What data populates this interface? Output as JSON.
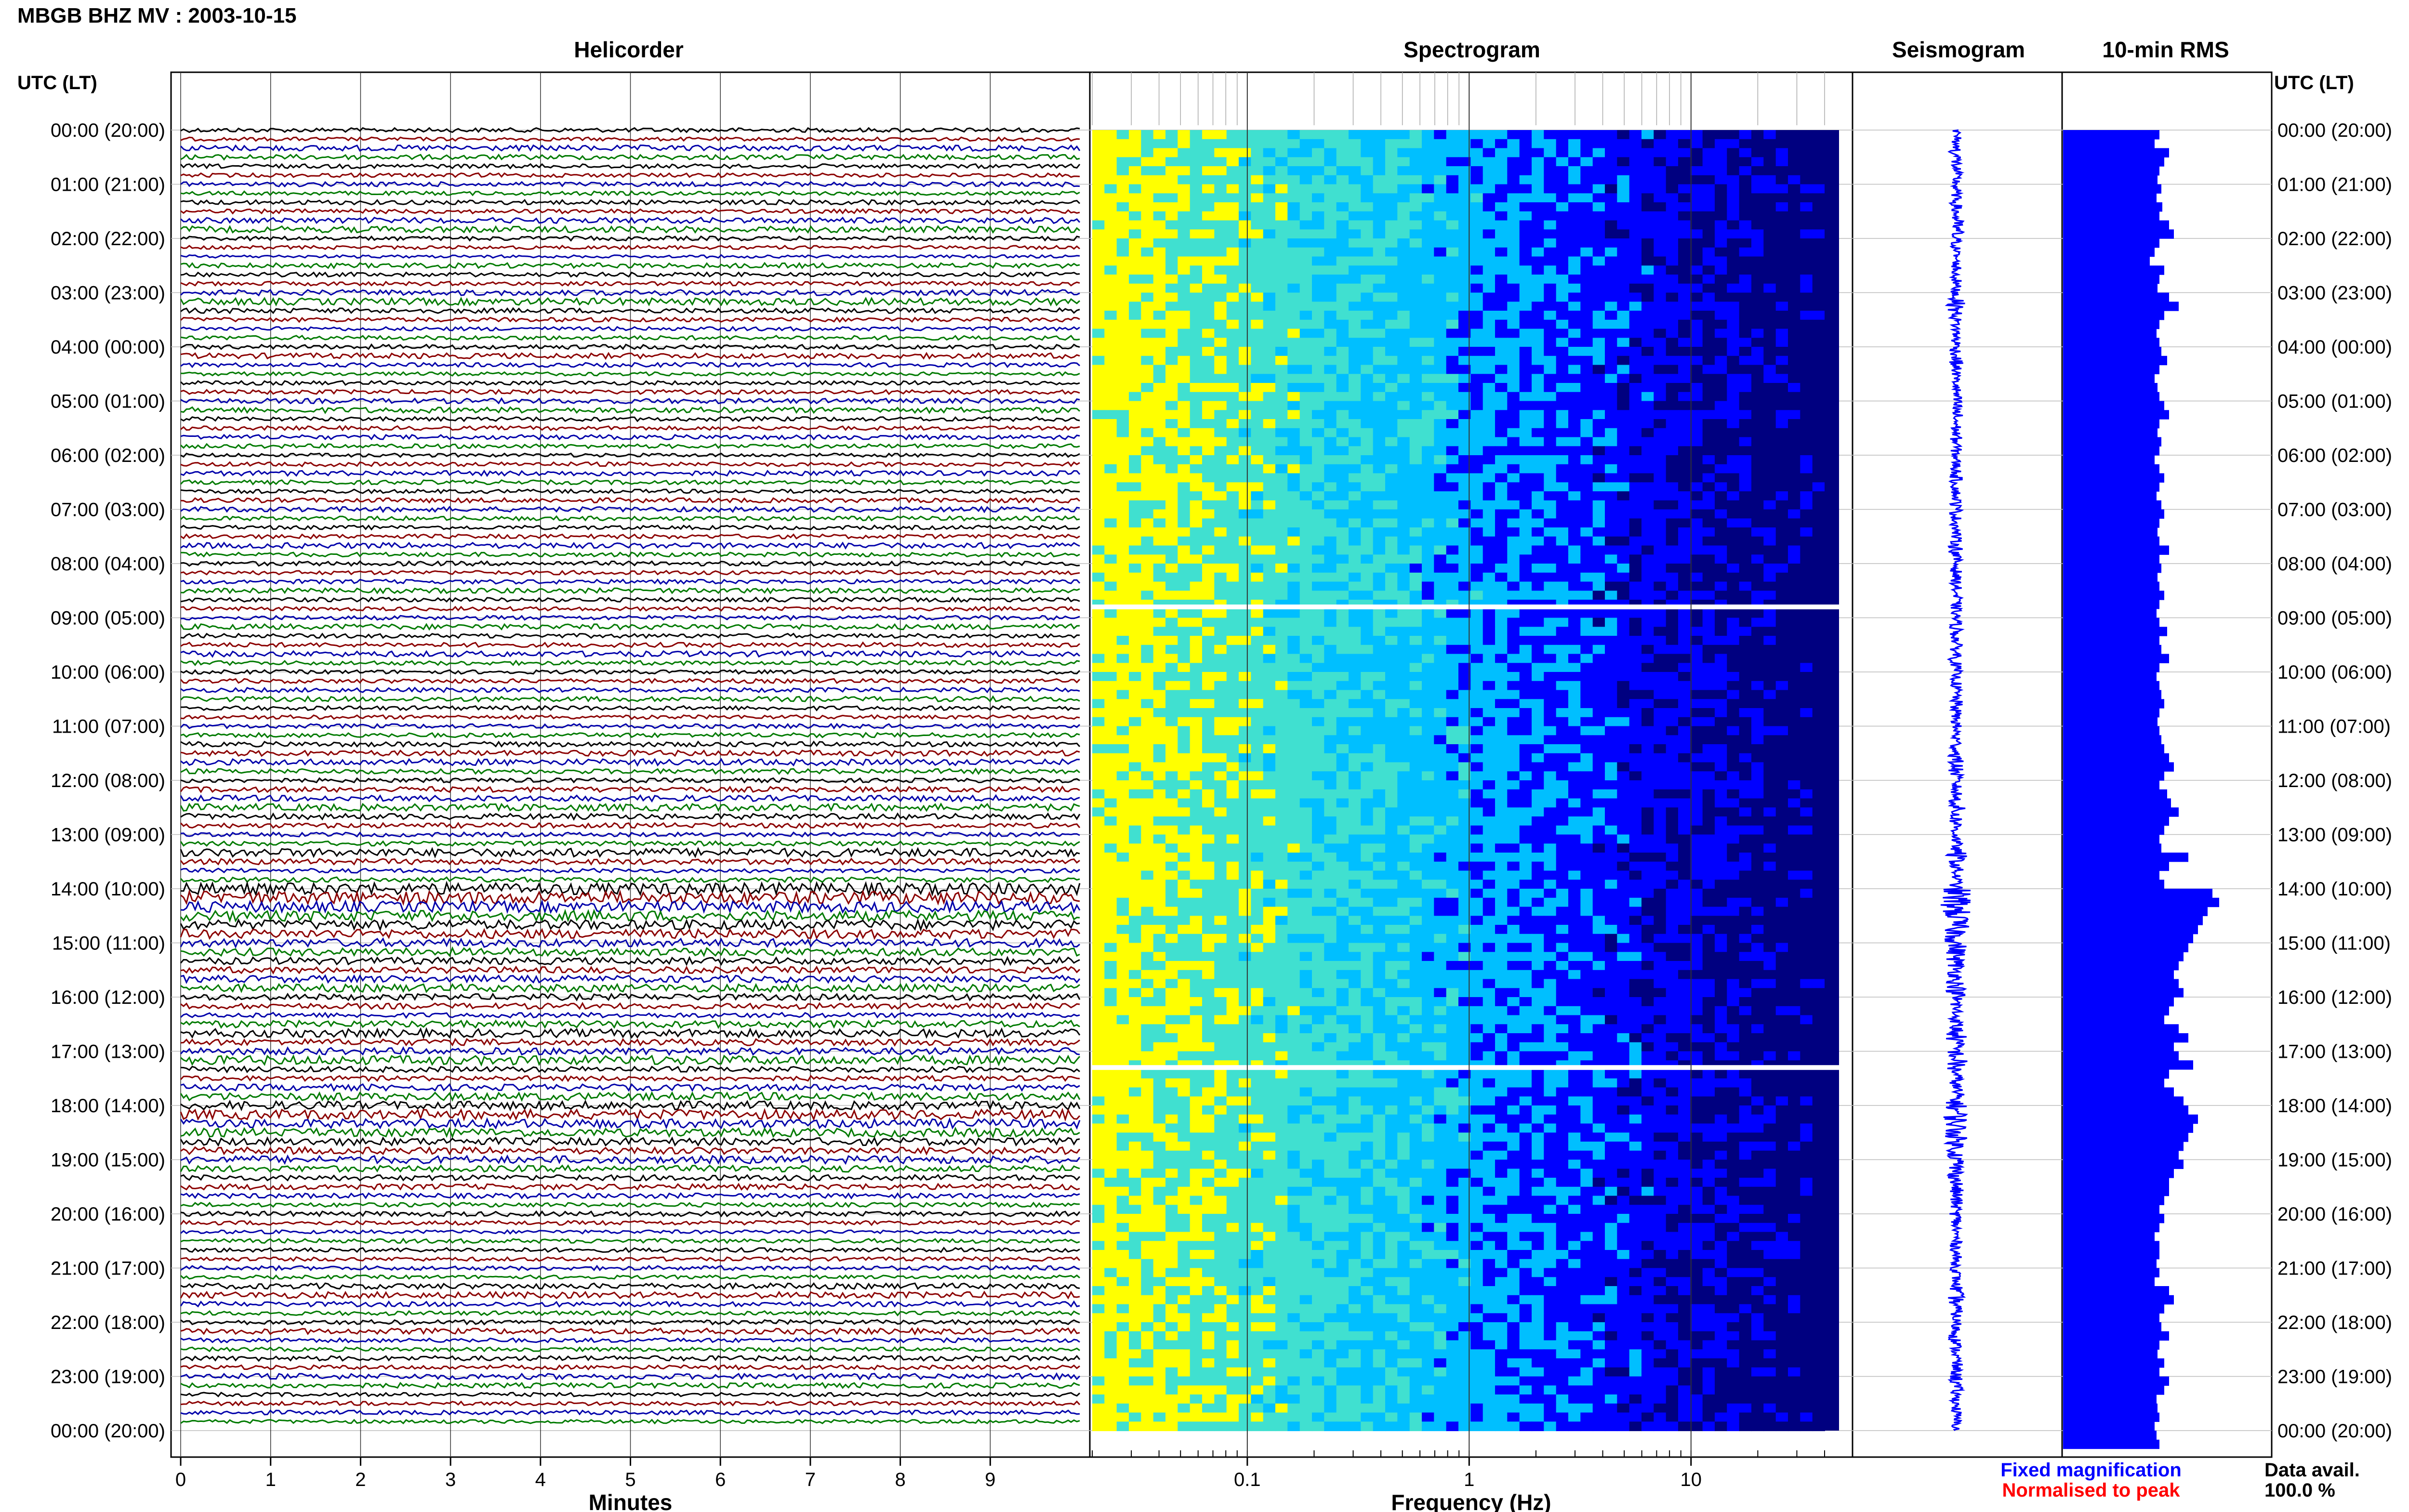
{
  "title": "MBGB BHZ MV : 2003-10-15",
  "panels": {
    "helicorder": "Helicorder",
    "spectrogram": "Spectrogram",
    "seismogram": "Seismogram",
    "rms": "10-min RMS"
  },
  "time_axis_label": "UTC (LT)",
  "footer": {
    "fixed": "Fixed magnification",
    "normalised": "Normalised to peak",
    "data_avail_label": "Data avail.",
    "data_avail_value": "100.0 %"
  },
  "colors": {
    "trace_cycle": [
      "#000000",
      "#8b0000",
      "#0000aa",
      "#007a00"
    ],
    "seismogram": "#0000ff",
    "rms": "#0000ff",
    "fixed_text": "#0000ff",
    "normalised_text": "#ff0000"
  },
  "chart_data": [
    {
      "type": "line",
      "name": "helicorder",
      "title": "Helicorder",
      "xlabel": "Minutes",
      "ylabel": "UTC (LT)",
      "xlim": [
        0,
        10
      ],
      "xticks": [
        0,
        1,
        2,
        3,
        4,
        5,
        6,
        7,
        8,
        9
      ],
      "rows_per_hour": 6,
      "y_tick_labels": [
        "00:00 (20:00)",
        "01:00 (21:00)",
        "02:00 (22:00)",
        "03:00 (23:00)",
        "04:00 (00:00)",
        "05:00 (01:00)",
        "06:00 (02:00)",
        "07:00 (03:00)",
        "08:00 (04:00)",
        "09:00 (05:00)",
        "10:00 (06:00)",
        "11:00 (07:00)",
        "12:00 (08:00)",
        "13:00 (09:00)",
        "14:00 (10:00)",
        "15:00 (11:00)",
        "16:00 (12:00)",
        "17:00 (13:00)",
        "18:00 (14:00)",
        "19:00 (15:00)",
        "20:00 (16:00)",
        "21:00 (17:00)",
        "22:00 (18:00)",
        "23:00 (19:00)",
        "00:00 (20:00)"
      ],
      "grid": true
    },
    {
      "type": "heatmap",
      "name": "spectrogram",
      "title": "Spectrogram",
      "xlabel": "Frequency (Hz)",
      "xscale": "log",
      "xlim": [
        0.02,
        40
      ],
      "xtick_labels": [
        "0.1",
        "1",
        "10"
      ],
      "xticks": [
        0.1,
        1,
        10
      ],
      "data_gaps_hours": [
        8.8,
        17.3
      ],
      "colormap": [
        "#000080",
        "#0000ff",
        "#00bfff",
        "#40e0d0",
        "#ffff00"
      ],
      "grid": true
    },
    {
      "type": "line",
      "name": "seismogram",
      "title": "Seismogram",
      "ylim": [
        0,
        24
      ],
      "grid": true
    },
    {
      "type": "bar",
      "name": "rms",
      "title": "10-min RMS",
      "orientation": "horizontal",
      "hours_per_bar": 0.16667,
      "values": [
        1.0,
        0.95,
        1.1,
        1.05,
        1.0,
        0.98,
        1.02,
        0.97,
        1.03,
        1.0,
        1.1,
        1.15,
        1.0,
        0.95,
        0.9,
        1.05,
        1.0,
        0.98,
        1.1,
        1.2,
        1.05,
        1.0,
        0.97,
        1.0,
        1.02,
        1.08,
        1.0,
        0.95,
        0.98,
        1.0,
        1.05,
        1.1,
        1.0,
        0.98,
        1.02,
        1.0,
        0.95,
        1.0,
        1.05,
        1.0,
        0.97,
        1.02,
        1.05,
        1.0,
        0.98,
        1.0,
        1.1,
        1.0,
        1.02,
        0.98,
        1.0,
        1.05,
        1.0,
        0.97,
        1.0,
        1.08,
        1.0,
        1.02,
        1.1,
        1.0,
        0.97,
        1.0,
        1.02,
        1.05,
        1.0,
        0.98,
        1.0,
        1.02,
        1.05,
        1.1,
        1.15,
        1.05,
        1.0,
        1.08,
        1.12,
        1.2,
        1.1,
        1.05,
        1.0,
        1.02,
        1.3,
        1.1,
        1.0,
        1.05,
        1.55,
        1.62,
        1.5,
        1.45,
        1.4,
        1.35,
        1.3,
        1.25,
        1.2,
        1.15,
        1.2,
        1.25,
        1.15,
        1.1,
        1.05,
        1.2,
        1.3,
        1.15,
        1.2,
        1.35,
        1.1,
        1.05,
        1.15,
        1.25,
        1.3,
        1.4,
        1.35,
        1.3,
        1.25,
        1.2,
        1.25,
        1.15,
        1.1,
        1.1,
        1.05,
        1.0,
        1.05,
        1.0,
        0.95,
        1.0,
        1.0,
        0.97,
        1.0,
        0.95,
        1.1,
        1.15,
        1.05,
        1.0,
        1.02,
        1.1,
        1.0,
        0.98,
        1.05,
        1.0,
        1.1,
        1.05,
        0.97,
        0.98,
        1.0,
        0.95,
        0.97,
        1.0
      ],
      "grid": true
    }
  ]
}
